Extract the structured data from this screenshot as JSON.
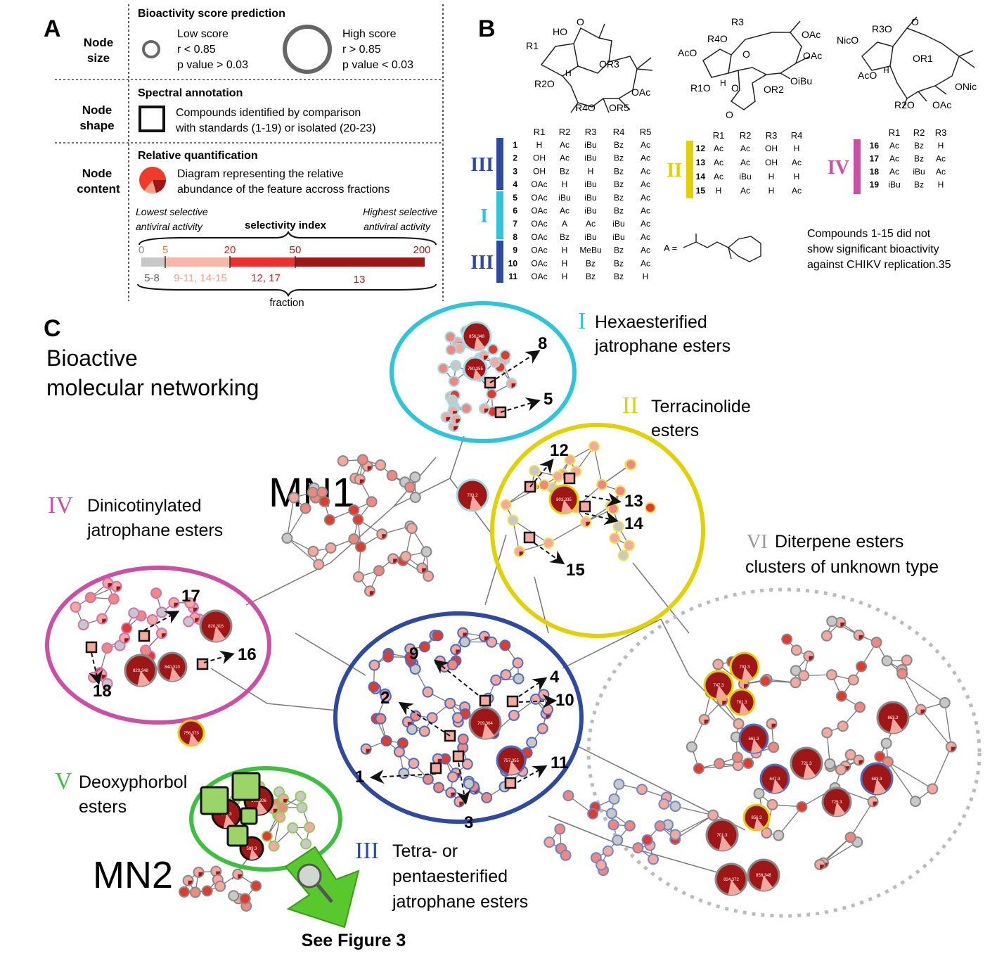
{
  "panelA": {
    "letter": "A",
    "rows": [
      {
        "label_l1": "Node",
        "label_l2": "size"
      },
      {
        "label_l1": "Node",
        "label_l2": "shape"
      },
      {
        "label_l1": "Node",
        "label_l2": "content"
      }
    ],
    "size": {
      "heading": "Bioactivity score prediction",
      "low": {
        "title": "Low score",
        "r": "r < 0.85",
        "p": "p value > 0.03"
      },
      "high": {
        "title": "High score",
        "r": "r > 0.85",
        "p": "p value < 0.03"
      }
    },
    "shape": {
      "heading": "Spectral annotation",
      "line1": "Compounds identified by comparison",
      "line2": "with standards (1-19) or isolated (20-23)"
    },
    "content": {
      "heading": "Relative quantification",
      "line1": "Diagram representing the relative",
      "line2": "abundance of the feature accross fractions",
      "lowest_l1": "Lowest selective",
      "lowest_l2": "antiviral activity",
      "index_label": "selectivity index",
      "highest_l1": "Highest selective",
      "highest_l2": "antiviral activity",
      "scale_ticks": [
        "0",
        "5",
        "20",
        "50",
        "200"
      ],
      "segments": [
        {
          "range": "5-8",
          "color": "#c8c8c8"
        },
        {
          "range": "9-11, 14-15",
          "color": "#f6b7a6"
        },
        {
          "range": "12, 17",
          "color": "#ec2f2f"
        },
        {
          "range": "13",
          "color": "#9e1616"
        }
      ],
      "fraction_label": "fraction"
    }
  },
  "panelB": {
    "letter": "B",
    "struct1": {
      "labels": [
        "R1",
        "HO",
        "O",
        "R2O",
        "OR3",
        "OAc",
        "R4O",
        "OR5",
        "H"
      ]
    },
    "struct2": {
      "labels": [
        "R3",
        "R4O",
        "O",
        "AcO",
        "R1O",
        "H",
        "O",
        "OR2",
        "O",
        "OAc",
        "OAc",
        "OiBu"
      ]
    },
    "struct3": {
      "labels": [
        "NicO",
        "R3O",
        "O",
        "AcO",
        "H",
        "OR1",
        "R2O",
        "OAc",
        "ONic"
      ]
    },
    "tableA": {
      "headers": [
        "R1",
        "R2",
        "R3",
        "R4",
        "R5"
      ],
      "rows": [
        [
          "1",
          "H",
          "Ac",
          "iBu",
          "Bz",
          "Ac"
        ],
        [
          "2",
          "OH",
          "Ac",
          "iBu",
          "Bz",
          "Ac"
        ],
        [
          "3",
          "OH",
          "Bz",
          "H",
          "Bz",
          "Ac"
        ],
        [
          "4",
          "OAc",
          "H",
          "iBu",
          "Bz",
          "Ac"
        ],
        [
          "5",
          "OAc",
          "iBu",
          "iBu",
          "Bz",
          "Ac"
        ],
        [
          "6",
          "OAc",
          "Ac",
          "iBu",
          "Bz",
          "Ac"
        ],
        [
          "7",
          "OAc",
          "A",
          "Ac",
          "iBu",
          "Ac"
        ],
        [
          "8",
          "OAc",
          "Bz",
          "iBu",
          "iBu",
          "Ac"
        ],
        [
          "9",
          "OAc",
          "H",
          "MeBu",
          "Bz",
          "Ac"
        ],
        [
          "10",
          "OAc",
          "H",
          "Bz",
          "Bz",
          "Ac"
        ],
        [
          "11",
          "OAc",
          "H",
          "Bz",
          "Bz",
          "H"
        ]
      ],
      "groups": [
        {
          "label": "III",
          "color": "#2e4aa0"
        },
        {
          "label": "I",
          "color": "#2ec4dc"
        },
        {
          "label": "III",
          "color": "#2e4aa0"
        }
      ]
    },
    "tableB": {
      "headers": [
        "R1",
        "R2",
        "R3",
        "R4"
      ],
      "rows": [
        [
          "12",
          "Ac",
          "Ac",
          "OH",
          "H"
        ],
        [
          "13",
          "Ac",
          "Ac",
          "OH",
          "Ac"
        ],
        [
          "14",
          "Ac",
          "iBu",
          "H",
          "H"
        ],
        [
          "15",
          "H",
          "Ac",
          "H",
          "Ac"
        ]
      ],
      "group": {
        "label": "II",
        "color": "#e2d000"
      }
    },
    "tableC": {
      "headers": [
        "R1",
        "R2",
        "R3"
      ],
      "rows": [
        [
          "16",
          "Ac",
          "Bz",
          "H"
        ],
        [
          "17",
          "Ac",
          "Bz",
          "Ac"
        ],
        [
          "18",
          "Ac",
          "iBu",
          "Ac"
        ],
        [
          "19",
          "iBu",
          "Bz",
          "H"
        ]
      ],
      "group": {
        "label": "IV",
        "color": "#cc4fa6"
      }
    },
    "a_def": "A =",
    "note_l1": "Compounds 1-15 did not",
    "note_l2": "show significant bioactivity",
    "note_l3": "against CHIKV replication.35"
  },
  "panelC": {
    "letter": "C",
    "title_l1": "Bioactive",
    "title_l2": "molecular networking",
    "mn1": "MN1",
    "mn2": "MN2",
    "see_figure": "See Figure 3",
    "clusters": [
      {
        "numeral": "I",
        "name_l1": "Hexaesterified",
        "name_l2": "jatrophane esters",
        "color": "#2ec4dc"
      },
      {
        "numeral": "II",
        "name_l1": "Terracinolide",
        "name_l2": "esters",
        "color": "#e2d000"
      },
      {
        "numeral": "III",
        "name_l1": "Tetra- or",
        "name_l2": "pentaesterified",
        "name_l3": "jatrophane esters",
        "color": "#2e4aa0"
      },
      {
        "numeral": "IV",
        "name_l1": "Dinicotinylated",
        "name_l2": "jatrophane esters",
        "color": "#cc4fa6"
      },
      {
        "numeral": "V",
        "name_l1": "Deoxyphorbol",
        "name_l2": "esters",
        "color": "#3fbf3f"
      },
      {
        "numeral": "VI",
        "name_l1": "Diterpene esters",
        "name_l2": "clusters of unknown type",
        "color": "#999999"
      }
    ],
    "compound_labels": [
      "1",
      "2",
      "3",
      "4",
      "5",
      "8",
      "9",
      "10",
      "11",
      "12",
      "13",
      "14",
      "15",
      "16",
      "17",
      "18"
    ],
    "big_nodes": [
      "856.348",
      "780.355",
      "703.2",
      "803.335",
      "820.316",
      "820.348",
      "840.310",
      "756.373",
      "709.364",
      "757.355",
      "591.3",
      "563.206",
      "589.3",
      "793.3",
      "747.3",
      "761.3",
      "661.3",
      "647.3",
      "721.3",
      "725.3",
      "683.3",
      "863.3",
      "856.3",
      "701.3",
      "824.372",
      "858.348"
    ]
  }
}
